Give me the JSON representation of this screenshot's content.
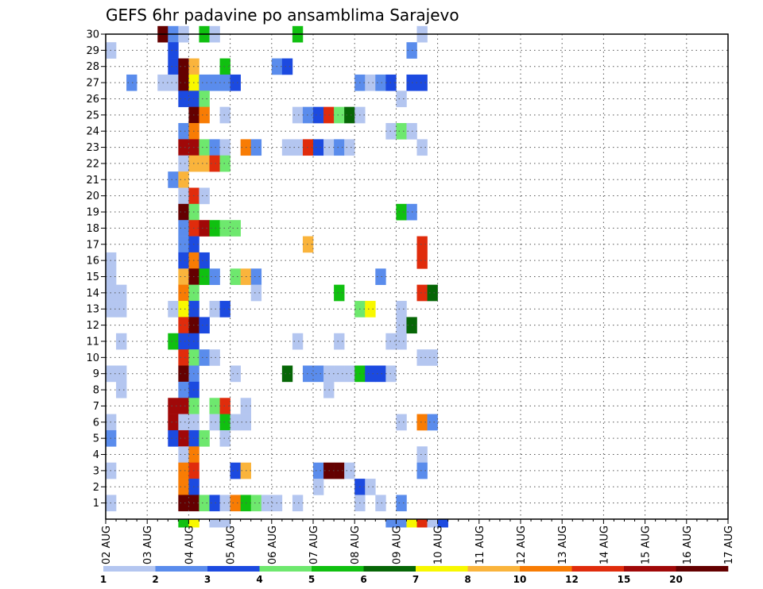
{
  "chart_data": {
    "type": "heatmap",
    "title": "GEFS 6hr padavine po ansamblima Sarajevo",
    "xlabel": "",
    "ylabel": "",
    "x_ticks": [
      "02 AUG",
      "03 AUG",
      "04 AUG",
      "05 AUG",
      "06 AUG",
      "07 AUG",
      "08 AUG",
      "09 AUG",
      "10 AUG",
      "11 AUG",
      "12 AUG",
      "13 AUG",
      "14 AUG",
      "15 AUG",
      "16 AUG",
      "17 AUG"
    ],
    "x_range": [
      "02 AUG 00Z",
      "17 AUG 00Z"
    ],
    "time_step_hours": 6,
    "y_ticks": [
      "1",
      "2",
      "3",
      "4",
      "5",
      "6",
      "7",
      "8",
      "9",
      "10",
      "11",
      "12",
      "13",
      "14",
      "15",
      "16",
      "17",
      "18",
      "19",
      "20",
      "21",
      "22",
      "23",
      "24",
      "25",
      "26",
      "27",
      "28",
      "29",
      "30"
    ],
    "y_range": [
      0,
      30
    ],
    "grid": "dotted",
    "colorbar": {
      "labels": [
        "1",
        "2",
        "3",
        "4",
        "5",
        "6",
        "7",
        "8",
        "10",
        "12",
        "15",
        "20"
      ],
      "colors": [
        "#b4c6f0",
        "#5a8cec",
        "#1c4ae0",
        "#6ee86e",
        "#10c010",
        "#066606",
        "#f8f800",
        "#fab43c",
        "#f87c04",
        "#e02c0c",
        "#a00808",
        "#640000"
      ]
    },
    "cells": [
      [
        30,
        5,
        11
      ],
      [
        30,
        6,
        1
      ],
      [
        30,
        7,
        0
      ],
      [
        30,
        9,
        4
      ],
      [
        30,
        10,
        0
      ],
      [
        30,
        18,
        4
      ],
      [
        30,
        30,
        0
      ],
      [
        29,
        0,
        0
      ],
      [
        29,
        6,
        2
      ],
      [
        29,
        29,
        1
      ],
      [
        28,
        6,
        2
      ],
      [
        28,
        7,
        11
      ],
      [
        28,
        8,
        7
      ],
      [
        28,
        11,
        4
      ],
      [
        28,
        16,
        1
      ],
      [
        28,
        17,
        2
      ],
      [
        27,
        5,
        0
      ],
      [
        27,
        6,
        0
      ],
      [
        27,
        2,
        1
      ],
      [
        27,
        7,
        11
      ],
      [
        27,
        8,
        6
      ],
      [
        27,
        9,
        1
      ],
      [
        27,
        10,
        1
      ],
      [
        27,
        11,
        1
      ],
      [
        27,
        12,
        2
      ],
      [
        27,
        24,
        1
      ],
      [
        27,
        25,
        0
      ],
      [
        27,
        26,
        1
      ],
      [
        27,
        27,
        2
      ],
      [
        27,
        29,
        2
      ],
      [
        27,
        30,
        2
      ],
      [
        26,
        7,
        2
      ],
      [
        26,
        8,
        2
      ],
      [
        26,
        9,
        3
      ],
      [
        26,
        28,
        0
      ],
      [
        25,
        8,
        11
      ],
      [
        25,
        9,
        8
      ],
      [
        25,
        11,
        0
      ],
      [
        25,
        18,
        0
      ],
      [
        25,
        19,
        1
      ],
      [
        25,
        20,
        2
      ],
      [
        25,
        21,
        9
      ],
      [
        25,
        22,
        3
      ],
      [
        25,
        23,
        5
      ],
      [
        25,
        24,
        0
      ],
      [
        24,
        7,
        1
      ],
      [
        24,
        8,
        8
      ],
      [
        24,
        27,
        0
      ],
      [
        24,
        28,
        3
      ],
      [
        24,
        29,
        0
      ],
      [
        23,
        7,
        10
      ],
      [
        23,
        8,
        10
      ],
      [
        23,
        9,
        3
      ],
      [
        23,
        10,
        1
      ],
      [
        23,
        11,
        0
      ],
      [
        23,
        13,
        8
      ],
      [
        23,
        14,
        1
      ],
      [
        23,
        17,
        0
      ],
      [
        23,
        18,
        0
      ],
      [
        23,
        19,
        9
      ],
      [
        23,
        20,
        2
      ],
      [
        23,
        21,
        0
      ],
      [
        23,
        22,
        1
      ],
      [
        23,
        23,
        0
      ],
      [
        23,
        30,
        0
      ],
      [
        22,
        7,
        0
      ],
      [
        22,
        8,
        7
      ],
      [
        22,
        9,
        7
      ],
      [
        22,
        10,
        9
      ],
      [
        22,
        11,
        3
      ],
      [
        21,
        6,
        1
      ],
      [
        21,
        7,
        7
      ],
      [
        20,
        7,
        0
      ],
      [
        20,
        8,
        9
      ],
      [
        20,
        9,
        0
      ],
      [
        19,
        7,
        11
      ],
      [
        19,
        8,
        3
      ],
      [
        19,
        28,
        4
      ],
      [
        19,
        29,
        1
      ],
      [
        18,
        7,
        1
      ],
      [
        18,
        8,
        9
      ],
      [
        18,
        9,
        10
      ],
      [
        18,
        10,
        4
      ],
      [
        18,
        11,
        3
      ],
      [
        18,
        12,
        3
      ],
      [
        17,
        7,
        1
      ],
      [
        17,
        8,
        2
      ],
      [
        17,
        19,
        7
      ],
      [
        17,
        30,
        9
      ],
      [
        16,
        0,
        0
      ],
      [
        16,
        7,
        2
      ],
      [
        16,
        8,
        8
      ],
      [
        16,
        9,
        2
      ],
      [
        16,
        30,
        9
      ],
      [
        15,
        0,
        0
      ],
      [
        15,
        7,
        7
      ],
      [
        15,
        8,
        11
      ],
      [
        15,
        9,
        4
      ],
      [
        15,
        10,
        1
      ],
      [
        15,
        12,
        3
      ],
      [
        15,
        13,
        7
      ],
      [
        15,
        14,
        1
      ],
      [
        15,
        26,
        1
      ],
      [
        14,
        0,
        0
      ],
      [
        14,
        1,
        0
      ],
      [
        14,
        7,
        8
      ],
      [
        14,
        8,
        3
      ],
      [
        14,
        14,
        0
      ],
      [
        14,
        22,
        4
      ],
      [
        14,
        30,
        9
      ],
      [
        14,
        31,
        5
      ],
      [
        13,
        0,
        0
      ],
      [
        13,
        1,
        0
      ],
      [
        13,
        6,
        0
      ],
      [
        13,
        7,
        6
      ],
      [
        13,
        8,
        2
      ],
      [
        13,
        10,
        0
      ],
      [
        13,
        11,
        2
      ],
      [
        13,
        24,
        3
      ],
      [
        13,
        25,
        6
      ],
      [
        13,
        28,
        0
      ],
      [
        12,
        7,
        9
      ],
      [
        12,
        8,
        11
      ],
      [
        12,
        9,
        2
      ],
      [
        12,
        28,
        0
      ],
      [
        12,
        29,
        5
      ],
      [
        11,
        1,
        0
      ],
      [
        11,
        6,
        4
      ],
      [
        11,
        7,
        2
      ],
      [
        11,
        8,
        2
      ],
      [
        11,
        18,
        0
      ],
      [
        11,
        22,
        0
      ],
      [
        11,
        27,
        0
      ],
      [
        11,
        28,
        0
      ],
      [
        10,
        7,
        9
      ],
      [
        10,
        8,
        3
      ],
      [
        10,
        9,
        1
      ],
      [
        10,
        10,
        0
      ],
      [
        10,
        30,
        0
      ],
      [
        10,
        31,
        0
      ],
      [
        9,
        0,
        0
      ],
      [
        9,
        1,
        0
      ],
      [
        9,
        7,
        11
      ],
      [
        9,
        8,
        1
      ],
      [
        9,
        12,
        0
      ],
      [
        9,
        17,
        5
      ],
      [
        9,
        19,
        1
      ],
      [
        9,
        20,
        1
      ],
      [
        9,
        21,
        0
      ],
      [
        9,
        22,
        0
      ],
      [
        9,
        23,
        0
      ],
      [
        9,
        24,
        4
      ],
      [
        9,
        25,
        2
      ],
      [
        9,
        26,
        2
      ],
      [
        9,
        27,
        0
      ],
      [
        8,
        1,
        0
      ],
      [
        8,
        7,
        1
      ],
      [
        8,
        8,
        2
      ],
      [
        8,
        21,
        0
      ],
      [
        7,
        6,
        10
      ],
      [
        7,
        7,
        10
      ],
      [
        7,
        8,
        3
      ],
      [
        7,
        10,
        3
      ],
      [
        7,
        11,
        9
      ],
      [
        7,
        13,
        0
      ],
      [
        6,
        0,
        0
      ],
      [
        6,
        6,
        10
      ],
      [
        6,
        7,
        0
      ],
      [
        6,
        8,
        0
      ],
      [
        6,
        10,
        0
      ],
      [
        6,
        11,
        4
      ],
      [
        6,
        12,
        0
      ],
      [
        6,
        13,
        0
      ],
      [
        6,
        28,
        0
      ],
      [
        6,
        30,
        8
      ],
      [
        6,
        31,
        1
      ],
      [
        5,
        0,
        1
      ],
      [
        5,
        6,
        2
      ],
      [
        5,
        7,
        10
      ],
      [
        5,
        8,
        2
      ],
      [
        5,
        9,
        3
      ],
      [
        5,
        11,
        0
      ],
      [
        4,
        7,
        0
      ],
      [
        4,
        8,
        8
      ],
      [
        4,
        30,
        0
      ],
      [
        3,
        0,
        0
      ],
      [
        3,
        7,
        8
      ],
      [
        3,
        8,
        9
      ],
      [
        3,
        12,
        2
      ],
      [
        3,
        13,
        7
      ],
      [
        3,
        20,
        1
      ],
      [
        3,
        21,
        11
      ],
      [
        3,
        22,
        11
      ],
      [
        3,
        23,
        0
      ],
      [
        3,
        30,
        1
      ],
      [
        2,
        7,
        8
      ],
      [
        2,
        8,
        2
      ],
      [
        2,
        20,
        0
      ],
      [
        2,
        24,
        2
      ],
      [
        2,
        25,
        0
      ],
      [
        1,
        0,
        0
      ],
      [
        1,
        7,
        11
      ],
      [
        1,
        8,
        11
      ],
      [
        1,
        9,
        3
      ],
      [
        1,
        10,
        2
      ],
      [
        1,
        11,
        0
      ],
      [
        1,
        12,
        8
      ],
      [
        1,
        13,
        4
      ],
      [
        1,
        14,
        3
      ],
      [
        1,
        15,
        0
      ],
      [
        1,
        16,
        0
      ],
      [
        1,
        18,
        0
      ],
      [
        1,
        24,
        0
      ],
      [
        1,
        26,
        0
      ],
      [
        1,
        28,
        1
      ],
      [
        0,
        7,
        4
      ],
      [
        0,
        8,
        6
      ],
      [
        0,
        10,
        0
      ],
      [
        0,
        11,
        0
      ],
      [
        0,
        27,
        1
      ],
      [
        0,
        28,
        1
      ],
      [
        0,
        29,
        6
      ],
      [
        0,
        30,
        9
      ],
      [
        0,
        31,
        0
      ],
      [
        0,
        32,
        2
      ]
    ]
  }
}
